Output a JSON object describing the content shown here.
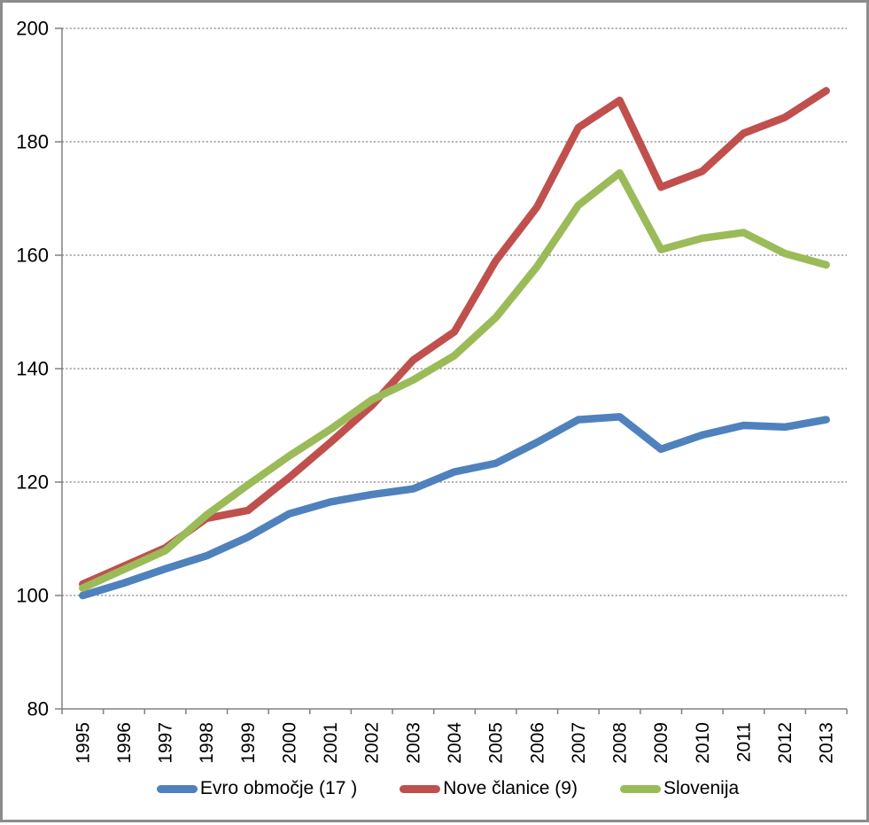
{
  "chart_data": {
    "type": "line",
    "title": "",
    "xlabel": "",
    "ylabel": "",
    "categories": [
      "1995",
      "1996",
      "1997",
      "1998",
      "1999",
      "2000",
      "2001",
      "2002",
      "2003",
      "2004",
      "2005",
      "2006",
      "2007",
      "2008",
      "2009",
      "2010",
      "2011",
      "2012",
      "2013"
    ],
    "series": [
      {
        "name": "Evro območje (17 )",
        "color": "#4F81BD",
        "values": [
          100.0,
          102.2,
          104.7,
          107.0,
          110.3,
          114.4,
          116.5,
          117.8,
          118.8,
          121.8,
          123.3,
          127.0,
          131.0,
          131.5,
          125.8,
          128.3,
          130.0,
          129.7,
          131.0
        ]
      },
      {
        "name": "Nove članice (9)",
        "color": "#C0504D",
        "values": [
          102.0,
          105.2,
          108.4,
          113.6,
          115.0,
          120.8,
          127.0,
          133.5,
          141.5,
          146.5,
          159.0,
          168.5,
          182.5,
          187.3,
          172.0,
          174.8,
          181.5,
          184.3,
          189.0
        ]
      },
      {
        "name": "Slovenija",
        "color": "#9BBB59",
        "values": [
          101.3,
          104.6,
          107.9,
          114.2,
          119.5,
          124.6,
          129.3,
          134.5,
          138.0,
          142.3,
          149.0,
          158.0,
          168.8,
          174.5,
          161.0,
          163.0,
          164.0,
          160.3,
          158.3
        ]
      }
    ],
    "ylim": [
      80,
      200
    ],
    "yticks": [
      80,
      100,
      120,
      140,
      160,
      180,
      200
    ],
    "grid": "horizontal-dotted",
    "legend_position": "bottom"
  },
  "style": {
    "axis_color": "#808080",
    "grid_color": "#7f7f7f",
    "text_color": "#000000",
    "frame_color": "#8c8c8c",
    "background": "#ffffff"
  }
}
